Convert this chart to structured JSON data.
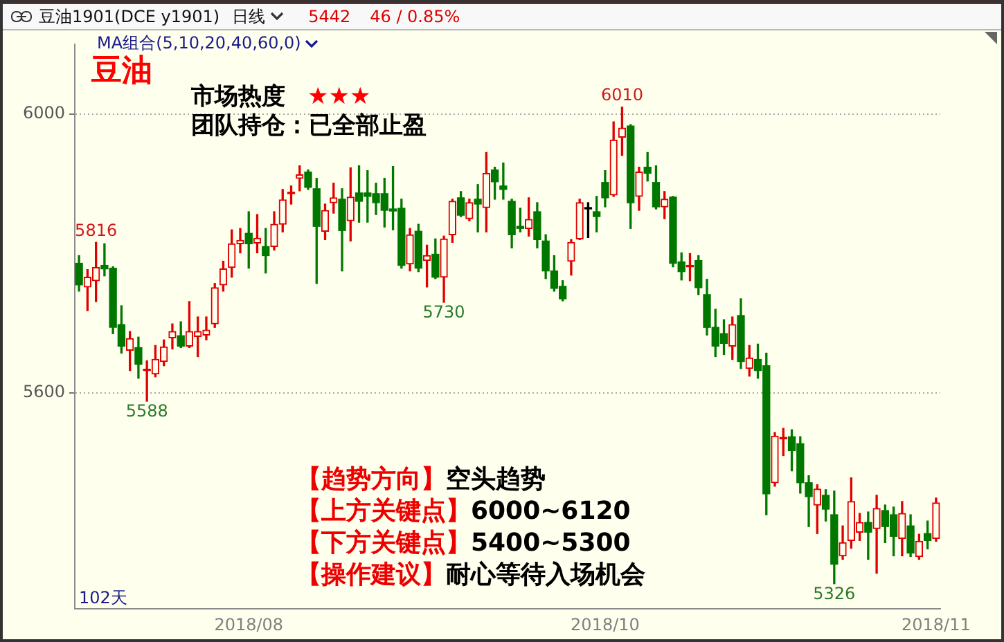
{
  "chart_data": {
    "type": "candlestick",
    "title": "豆油1901(DCE y1901)",
    "categories": [
      null,
      null,
      null,
      null,
      null,
      null,
      null,
      null,
      null,
      null,
      null,
      null,
      null,
      null,
      null,
      null,
      null,
      null,
      null,
      null,
      "2018/08",
      null,
      null,
      null,
      null,
      null,
      null,
      null,
      null,
      null,
      null,
      null,
      null,
      null,
      null,
      null,
      null,
      null,
      null,
      null,
      null,
      null,
      null,
      null,
      null,
      null,
      null,
      null,
      null,
      null,
      null,
      null,
      null,
      null,
      null,
      null,
      null,
      null,
      null,
      null,
      null,
      null,
      "2018/10",
      null,
      null,
      null,
      null,
      null,
      null,
      null,
      null,
      null,
      null,
      null,
      null,
      null,
      null,
      null,
      null,
      null,
      null,
      null,
      null,
      null,
      null,
      null,
      null,
      null,
      null,
      null,
      null,
      null,
      null,
      null,
      null,
      null,
      null,
      null,
      null,
      null,
      null,
      "2018/11"
    ],
    "ohlc": [
      [
        5786,
        5797,
        5746,
        5755
      ],
      [
        5752,
        5777,
        5718,
        5766
      ],
      [
        5761,
        5816,
        5731,
        5780
      ],
      [
        5783,
        5814,
        5768,
        5778
      ],
      [
        5779,
        5781,
        5685,
        5694
      ],
      [
        5698,
        5725,
        5657,
        5667
      ],
      [
        5661,
        5688,
        5632,
        5678
      ],
      [
        5665,
        5680,
        5621,
        5641
      ],
      [
        5632,
        5646,
        5588,
        5632
      ],
      [
        5627,
        5668,
        5623,
        5648
      ],
      [
        5645,
        5676,
        5639,
        5666
      ],
      [
        5679,
        5699,
        5663,
        5688
      ],
      [
        5682,
        5702,
        5665,
        5667
      ],
      [
        5667,
        5731,
        5665,
        5688
      ],
      [
        5681,
        5709,
        5652,
        5688
      ],
      [
        5683,
        5709,
        5676,
        5690
      ],
      [
        5699,
        5757,
        5694,
        5751
      ],
      [
        5755,
        5789,
        5746,
        5778
      ],
      [
        5780,
        5834,
        5766,
        5814
      ],
      [
        5814,
        5836,
        5801,
        5819
      ],
      [
        5829,
        5860,
        5779,
        5814
      ],
      [
        5815,
        5856,
        5801,
        5822
      ],
      [
        5810,
        5836,
        5772,
        5797
      ],
      [
        5810,
        5860,
        5805,
        5842
      ],
      [
        5842,
        5892,
        5831,
        5877
      ],
      [
        5886,
        5897,
        5871,
        5886
      ],
      [
        5908,
        5926,
        5890,
        5913
      ],
      [
        5917,
        5920,
        5892,
        5895
      ],
      [
        5893,
        5908,
        5757,
        5839
      ],
      [
        5832,
        5871,
        5820,
        5862
      ],
      [
        5873,
        5901,
        5858,
        5880
      ],
      [
        5878,
        5893,
        5775,
        5833
      ],
      [
        5847,
        5923,
        5818,
        5881
      ],
      [
        5887,
        5926,
        5845,
        5875
      ],
      [
        5887,
        5919,
        5845,
        5882
      ],
      [
        5886,
        5901,
        5856,
        5873
      ],
      [
        5886,
        5908,
        5838,
        5862
      ],
      [
        5864,
        5925,
        5834,
        5861
      ],
      [
        5865,
        5878,
        5779,
        5783
      ],
      [
        5785,
        5836,
        5775,
        5827
      ],
      [
        5832,
        5842,
        5774,
        5779
      ],
      [
        5790,
        5812,
        5752,
        5797
      ],
      [
        5799,
        5821,
        5764,
        5766
      ],
      [
        5766,
        5825,
        5730,
        5821
      ],
      [
        5827,
        5878,
        5816,
        5875
      ],
      [
        5880,
        5889,
        5853,
        5855
      ],
      [
        5850,
        5878,
        5847,
        5873
      ],
      [
        5878,
        5899,
        5831,
        5871
      ],
      [
        5866,
        5945,
        5831,
        5915
      ],
      [
        5920,
        5924,
        5878,
        5903
      ],
      [
        5897,
        5930,
        5878,
        5892
      ],
      [
        5875,
        5878,
        5808,
        5827
      ],
      [
        5839,
        5865,
        5831,
        5836
      ],
      [
        5836,
        5880,
        5825,
        5849
      ],
      [
        5860,
        5873,
        5808,
        5820
      ],
      [
        5818,
        5827,
        5764,
        5775
      ],
      [
        5775,
        5797,
        5746,
        5750
      ],
      [
        5753,
        5761,
        5732,
        5735
      ],
      [
        5789,
        5820,
        5769,
        5816
      ],
      [
        5821,
        5878,
        5820,
        5873
      ],
      [
        5864,
        5873,
        5823,
        5864
      ],
      [
        5860,
        5882,
        5831,
        5853
      ],
      [
        5902,
        5919,
        5867,
        5880
      ],
      [
        5884,
        5989,
        5882,
        5963
      ],
      [
        5967,
        6010,
        5941,
        5980
      ],
      [
        5983,
        5985,
        5836,
        5873
      ],
      [
        5882,
        5924,
        5862,
        5917
      ],
      [
        5924,
        5945,
        5904,
        5915
      ],
      [
        5902,
        5926,
        5864,
        5867
      ],
      [
        5867,
        5889,
        5850,
        5878
      ],
      [
        5881,
        5882,
        5781,
        5786
      ],
      [
        5788,
        5801,
        5762,
        5774
      ],
      [
        5781,
        5800,
        5761,
        5781
      ],
      [
        5790,
        5797,
        5741,
        5751
      ],
      [
        5741,
        5763,
        5683,
        5694
      ],
      [
        5694,
        5720,
        5652,
        5667
      ],
      [
        5685,
        5705,
        5655,
        5671
      ],
      [
        5667,
        5709,
        5648,
        5698
      ],
      [
        5711,
        5735,
        5635,
        5645
      ],
      [
        5635,
        5668,
        5624,
        5650
      ],
      [
        5648,
        5670,
        5621,
        5632
      ],
      [
        5639,
        5657,
        5425,
        5455
      ],
      [
        5471,
        5543,
        5466,
        5538
      ],
      [
        5534,
        5549,
        5510,
        5534
      ],
      [
        5537,
        5547,
        5488,
        5517
      ],
      [
        5527,
        5537,
        5456,
        5471
      ],
      [
        5471,
        5481,
        5408,
        5451
      ],
      [
        5439,
        5468,
        5398,
        5462
      ],
      [
        5453,
        5461,
        5416,
        5433
      ],
      [
        5425,
        5459,
        5326,
        5354
      ],
      [
        5366,
        5409,
        5361,
        5385
      ],
      [
        5388,
        5478,
        5377,
        5444
      ],
      [
        5400,
        5427,
        5388,
        5414
      ],
      [
        5414,
        5429,
        5361,
        5400
      ],
      [
        5405,
        5453,
        5341,
        5434
      ],
      [
        5431,
        5439,
        5385,
        5408
      ],
      [
        5425,
        5436,
        5366,
        5394
      ],
      [
        5391,
        5444,
        5366,
        5427
      ],
      [
        5409,
        5425,
        5365,
        5370
      ],
      [
        5365,
        5397,
        5361,
        5387
      ],
      [
        5398,
        5416,
        5376,
        5388
      ],
      [
        5391,
        5449,
        5387,
        5442
      ]
    ],
    "colors": [
      "#007800",
      "#e00000",
      "#e00000",
      "#007800",
      "#007800",
      "#007800",
      "#e00000",
      "#007800",
      "#e00000",
      "#e00000",
      "#e00000",
      "#e00000",
      "#007800",
      "#e00000",
      "#e00000",
      "#e00000",
      "#e00000",
      "#e00000",
      "#e00000",
      "#e00000",
      "#007800",
      "#e00000",
      "#007800",
      "#e00000",
      "#e00000",
      "#e00000",
      "#e00000",
      "#007800",
      "#007800",
      "#e00000",
      "#e00000",
      "#007800",
      "#e00000",
      "#007800",
      "#007800",
      "#007800",
      "#007800",
      "#007800",
      "#007800",
      "#e00000",
      "#007800",
      "#e00000",
      "#007800",
      "#e00000",
      "#e00000",
      "#007800",
      "#e00000",
      "#007800",
      "#e00000",
      "#007800",
      "#007800",
      "#007800",
      "#007800",
      "#e00000",
      "#007800",
      "#007800",
      "#007800",
      "#007800",
      "#e00000",
      "#e00000",
      "#000000",
      "#007800",
      "#007800",
      "#e00000",
      "#e00000",
      "#007800",
      "#e00000",
      "#007800",
      "#007800",
      "#e00000",
      "#007800",
      "#007800",
      "#e00000",
      "#007800",
      "#007800",
      "#007800",
      "#007800",
      "#e00000",
      "#007800",
      "#e00000",
      "#007800",
      "#007800",
      "#e00000",
      "#e00000",
      "#007800",
      "#007800",
      "#007800",
      "#e00000",
      "#007800",
      "#007800",
      "#e00000",
      "#e00000",
      "#e00000",
      "#007800",
      "#e00000",
      "#007800",
      "#007800",
      "#e00000",
      "#007800",
      "#e00000",
      "#007800",
      "#e00000"
    ],
    "ylim": [
      5290,
      6100
    ],
    "yticks": [
      5600,
      6000
    ],
    "grid": "y",
    "annotations": [
      "日线",
      "5442",
      "46 / 0.85%",
      "MA组合(5,10,20,40,60,0)",
      "豆油",
      {
        "text": "6010",
        "y": 6010
      },
      "市场热度",
      "★★★",
      "团队持仓：已全部止盈",
      {
        "text": "5816",
        "y": 5816
      },
      {
        "text": "5730",
        "y": 5730
      },
      {
        "text": "5588",
        "y": 5588
      },
      "【趋势方向】空头趋势",
      "【上方关键点】6000~6120",
      "【下方关键点】5400~5300",
      "【操作建议】耐心等待入场机会",
      "102天",
      {
        "text": "5326",
        "y": 5326
      }
    ]
  }
}
